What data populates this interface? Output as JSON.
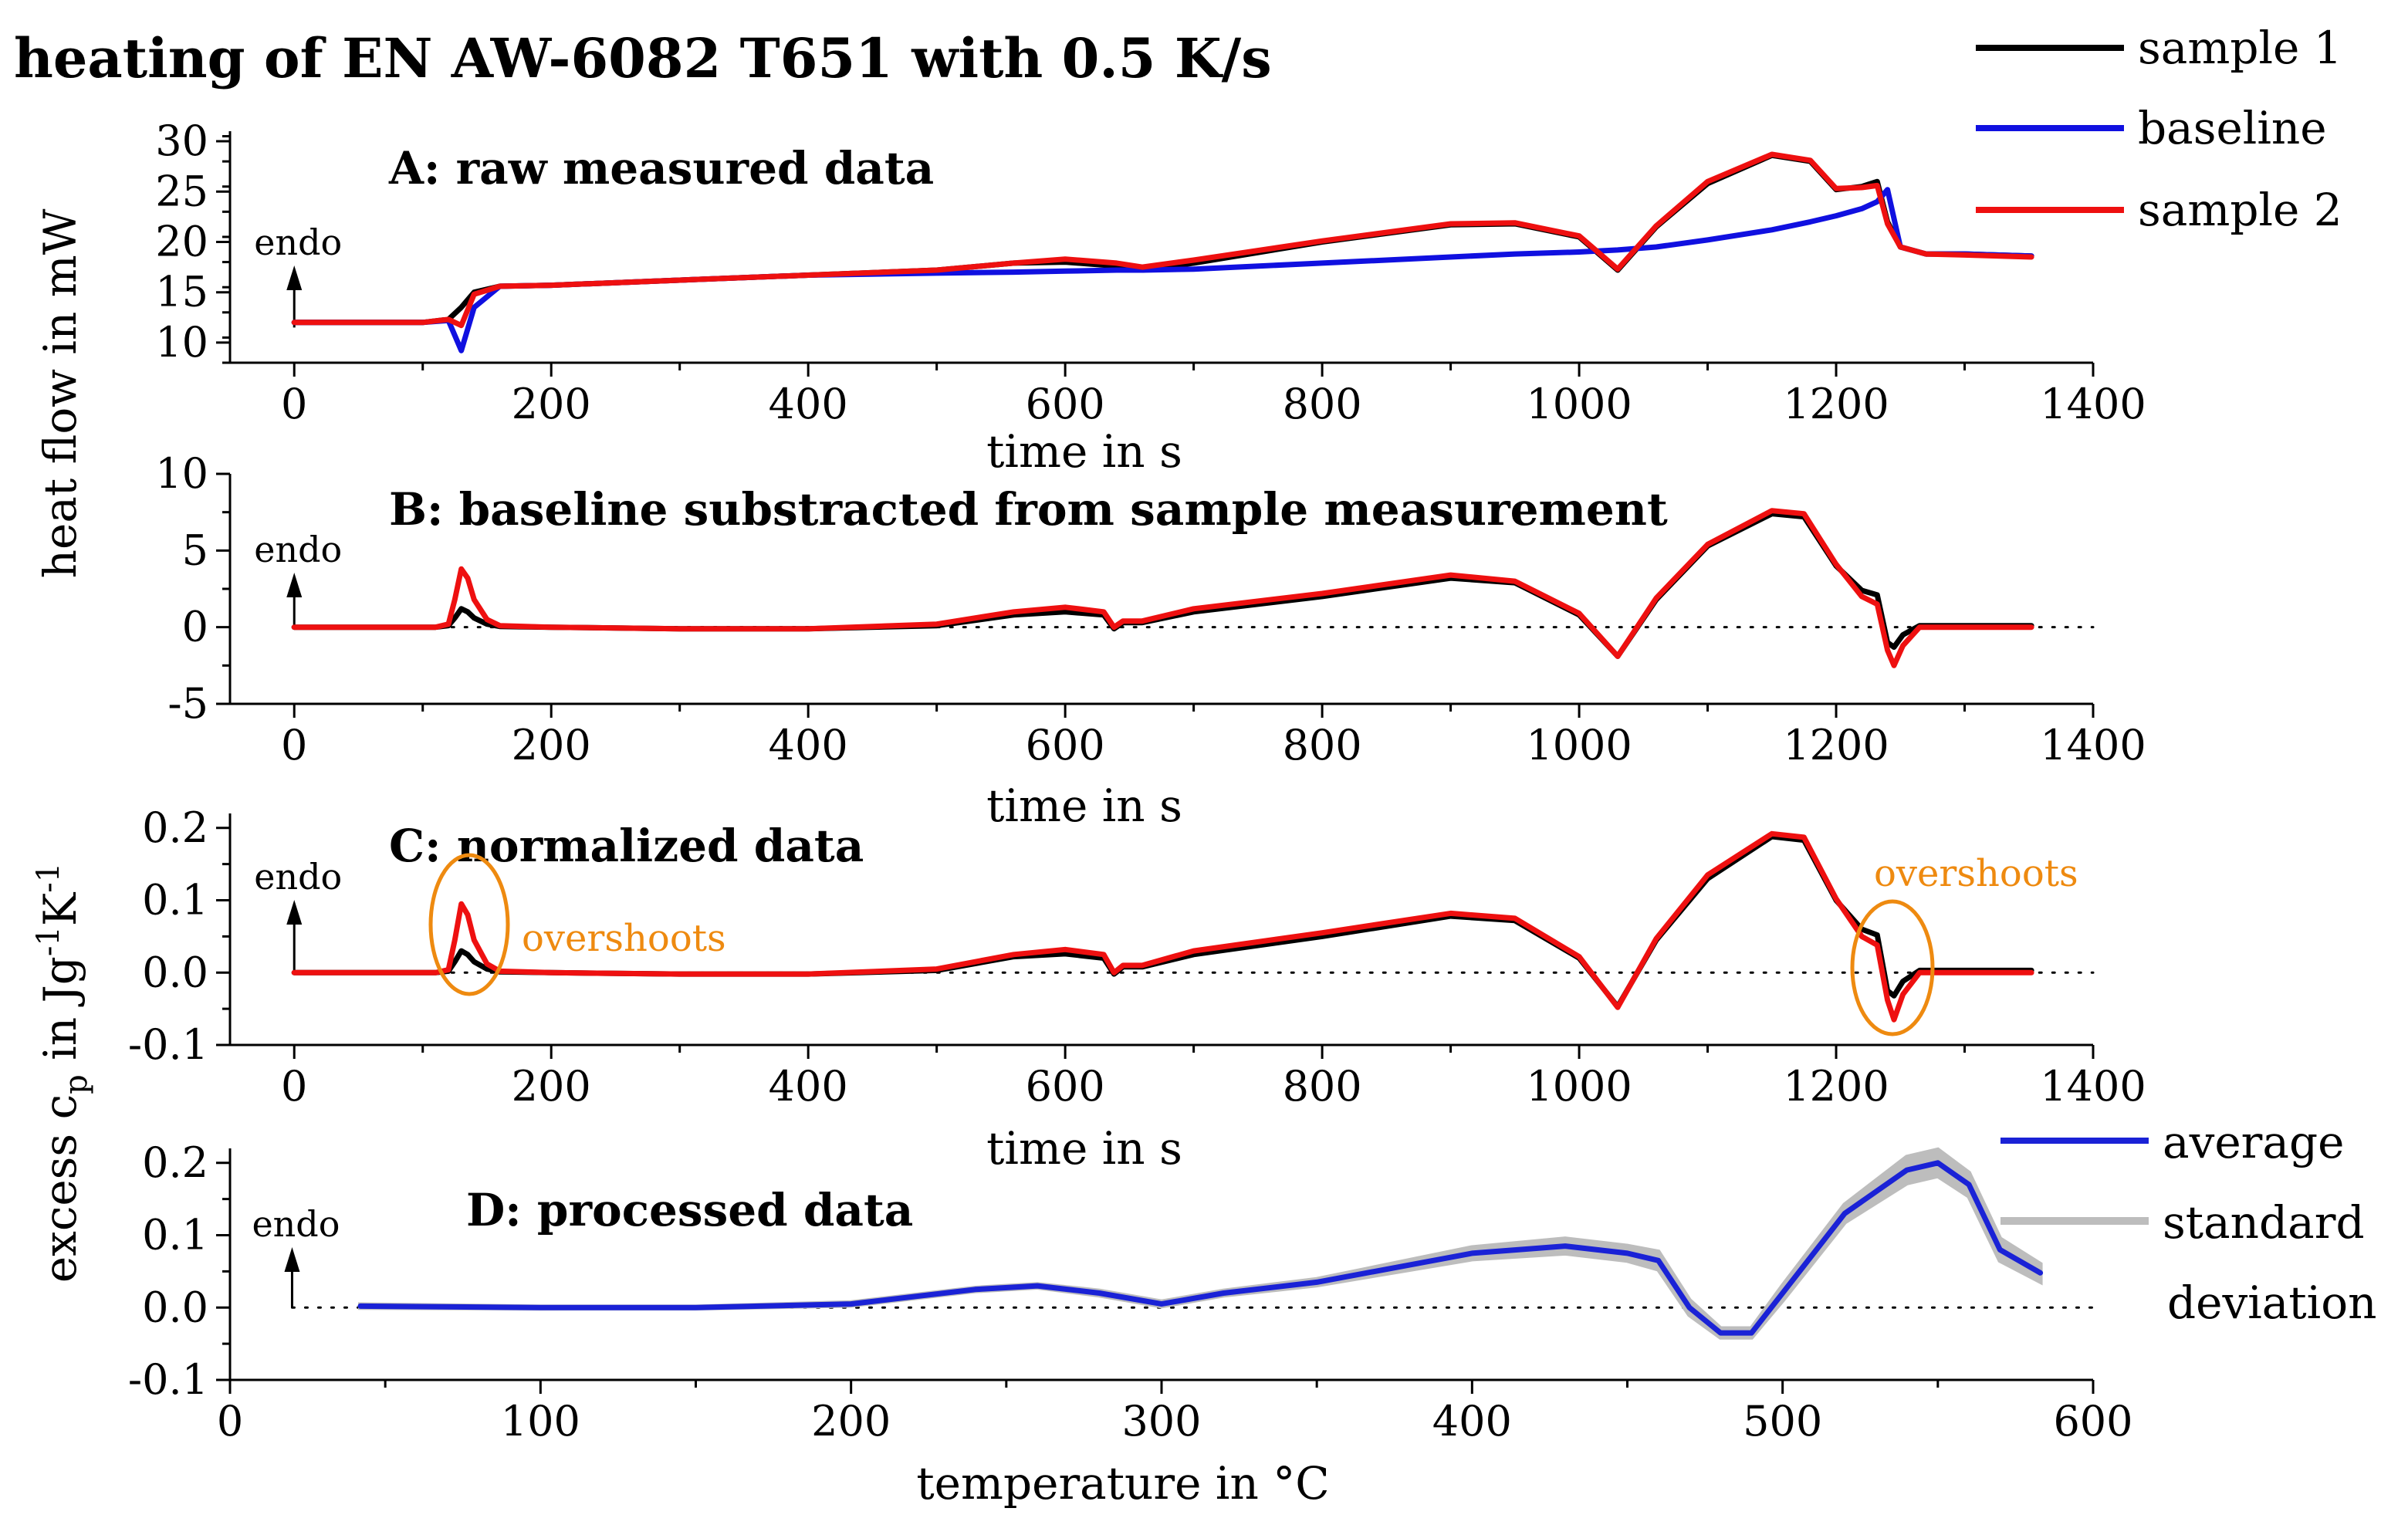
{
  "figure": {
    "title": "heating of EN AW-6082 T651 with 0.5 K/s",
    "shared_ylabel_top": "heat flow in mW",
    "shared_ylabel_bottom_parts": [
      "excess c",
      "p",
      " in Jg",
      "-1",
      "K",
      "-1"
    ],
    "endo_label": "endo",
    "legend_top": [
      {
        "label": "sample 1",
        "color": "#000000"
      },
      {
        "label": "baseline",
        "color": "#1010e0"
      },
      {
        "label": "sample 2",
        "color": "#ee1010"
      }
    ],
    "legend_bottom": [
      {
        "label": "average",
        "color": "#1a22d6"
      },
      {
        "label": "standard",
        "color": "#bdbdbd"
      },
      {
        "label": "deviation",
        "color": "#bdbdbd"
      }
    ],
    "annotations": {
      "overshoots_left": "overshoots",
      "overshoots_right": "overshoots",
      "color": "#ee8a10"
    }
  },
  "chart_data": [
    {
      "id": "A",
      "type": "line",
      "title": "A: raw measured data",
      "xlabel": "time in s",
      "ylabel": "heat flow in mW",
      "xlim": [
        -50,
        1400
      ],
      "ylim": [
        8,
        31
      ],
      "xticks": [
        0,
        200,
        400,
        600,
        800,
        1000,
        1200,
        1400
      ],
      "yticks": [
        10,
        15,
        20,
        25,
        30
      ],
      "x": [
        0,
        100,
        120,
        130,
        140,
        160,
        200,
        300,
        400,
        500,
        560,
        600,
        640,
        660,
        700,
        800,
        900,
        950,
        1000,
        1030,
        1060,
        1100,
        1150,
        1180,
        1200,
        1220,
        1232,
        1240,
        1250,
        1270,
        1300,
        1352
      ],
      "series": [
        {
          "name": "sample 1",
          "color": "#000000",
          "values": [
            12,
            12,
            12.3,
            13.5,
            15,
            15.6,
            15.7,
            16.2,
            16.7,
            17.2,
            17.9,
            18.0,
            17.6,
            17.2,
            17.9,
            20.0,
            21.7,
            21.8,
            20.5,
            17.2,
            21.5,
            25.8,
            28.6,
            28.0,
            25.2,
            25.5,
            26.0,
            22.0,
            19.5,
            18.8,
            18.8,
            18.6
          ]
        },
        {
          "name": "baseline",
          "color": "#1010e0",
          "values": [
            12,
            12,
            12.2,
            9.2,
            13.5,
            15.6,
            15.7,
            16.2,
            16.7,
            16.9,
            17.0,
            17.1,
            17.2,
            17.2,
            17.3,
            17.9,
            18.5,
            18.8,
            19.0,
            19.2,
            19.5,
            20.2,
            21.2,
            22.0,
            22.6,
            23.3,
            24.0,
            25.2,
            19.5,
            18.8,
            18.8,
            18.6
          ]
        },
        {
          "name": "sample 2",
          "color": "#ee1010",
          "values": [
            12,
            12,
            12.3,
            11.7,
            14.8,
            15.6,
            15.7,
            16.2,
            16.7,
            17.2,
            17.9,
            18.3,
            17.9,
            17.5,
            18.2,
            20.1,
            21.8,
            21.9,
            20.6,
            17.3,
            21.6,
            26.0,
            28.7,
            28.1,
            25.3,
            25.4,
            25.6,
            21.8,
            19.5,
            18.8,
            18.7,
            18.5
          ]
        }
      ]
    },
    {
      "id": "B",
      "type": "line",
      "title": "B: baseline substracted from sample measurement",
      "xlabel": "time in s",
      "ylabel": "heat flow in mW",
      "xlim": [
        -50,
        1400
      ],
      "ylim": [
        -5,
        10
      ],
      "xticks": [
        0,
        200,
        400,
        600,
        800,
        1000,
        1200,
        1400
      ],
      "yticks": [
        -5,
        0,
        5,
        10
      ],
      "x": [
        0,
        110,
        120,
        125,
        130,
        135,
        140,
        150,
        160,
        200,
        300,
        400,
        500,
        560,
        600,
        630,
        638,
        645,
        660,
        700,
        800,
        900,
        950,
        1000,
        1030,
        1060,
        1100,
        1150,
        1175,
        1200,
        1220,
        1232,
        1240,
        1245,
        1252,
        1265,
        1300,
        1352
      ],
      "series": [
        {
          "name": "sample 1",
          "color": "#000000",
          "values": [
            0,
            0,
            0.1,
            0.6,
            1.2,
            1.0,
            0.6,
            0.2,
            0.05,
            0,
            -0.1,
            -0.1,
            0.1,
            0.8,
            1.0,
            0.8,
            -0.1,
            0.3,
            0.3,
            1.0,
            2.0,
            3.2,
            2.9,
            0.8,
            -1.9,
            1.8,
            5.3,
            7.4,
            7.2,
            4.0,
            2.4,
            2.1,
            -1.0,
            -1.3,
            -0.5,
            0.1,
            0.1,
            0.1
          ]
        },
        {
          "name": "sample 2",
          "color": "#ee1010",
          "values": [
            0,
            0,
            0.2,
            1.8,
            3.8,
            3.2,
            1.8,
            0.5,
            0.1,
            0,
            -0.1,
            -0.1,
            0.2,
            1.0,
            1.3,
            1.0,
            0.0,
            0.4,
            0.4,
            1.2,
            2.2,
            3.4,
            3.0,
            0.9,
            -1.9,
            1.9,
            5.4,
            7.6,
            7.4,
            4.1,
            2.0,
            1.5,
            -1.5,
            -2.5,
            -1.2,
            0.0,
            0.0,
            0.0
          ]
        }
      ]
    },
    {
      "id": "C",
      "type": "line",
      "title": "C: normalized data",
      "xlabel": "time in s",
      "ylabel": "excess cp in Jg-1K-1",
      "xlim": [
        -50,
        1400
      ],
      "ylim": [
        -0.1,
        0.22
      ],
      "xticks": [
        0,
        200,
        400,
        600,
        800,
        1000,
        1200,
        1400
      ],
      "yticks": [
        -0.1,
        0.0,
        0.1,
        0.2
      ],
      "yticklabels": [
        "-0.1",
        "0.0",
        "0.1",
        "0.2"
      ],
      "x": [
        0,
        110,
        120,
        125,
        130,
        135,
        140,
        150,
        160,
        200,
        300,
        400,
        500,
        560,
        600,
        630,
        638,
        645,
        660,
        700,
        800,
        900,
        950,
        1000,
        1030,
        1060,
        1100,
        1150,
        1175,
        1200,
        1220,
        1232,
        1240,
        1245,
        1252,
        1265,
        1300,
        1352
      ],
      "series": [
        {
          "name": "sample 1",
          "color": "#000000",
          "values": [
            0,
            0,
            0.002,
            0.015,
            0.03,
            0.025,
            0.015,
            0.005,
            0.001,
            0,
            -0.002,
            -0.002,
            0.003,
            0.022,
            0.026,
            0.02,
            -0.002,
            0.008,
            0.008,
            0.025,
            0.05,
            0.078,
            0.072,
            0.02,
            -0.047,
            0.045,
            0.13,
            0.188,
            0.183,
            0.1,
            0.06,
            0.052,
            -0.025,
            -0.032,
            -0.012,
            0.003,
            0.003,
            0.003
          ]
        },
        {
          "name": "sample 2",
          "color": "#ee1010",
          "values": [
            0,
            0,
            0.004,
            0.045,
            0.095,
            0.08,
            0.045,
            0.012,
            0.002,
            0,
            -0.002,
            -0.002,
            0.005,
            0.025,
            0.032,
            0.025,
            0.0,
            0.01,
            0.01,
            0.03,
            0.055,
            0.082,
            0.075,
            0.022,
            -0.048,
            0.047,
            0.135,
            0.192,
            0.187,
            0.102,
            0.05,
            0.038,
            -0.038,
            -0.065,
            -0.03,
            0.0,
            0.0,
            0.0
          ]
        }
      ]
    },
    {
      "id": "D",
      "type": "line",
      "title": "D: processed data",
      "xlabel": "temperature in °C",
      "ylabel": "excess cp in Jg-1K-1",
      "xlim": [
        0,
        600
      ],
      "ylim": [
        -0.1,
        0.22
      ],
      "xticks": [
        0,
        100,
        200,
        300,
        400,
        500,
        600
      ],
      "yticks": [
        -0.1,
        0.0,
        0.1,
        0.2
      ],
      "yticklabels": [
        "-0.1",
        "0.0",
        "0.1",
        "0.2"
      ],
      "x": [
        42,
        100,
        150,
        200,
        240,
        260,
        280,
        300,
        320,
        350,
        400,
        430,
        450,
        460,
        470,
        480,
        490,
        500,
        520,
        540,
        550,
        560,
        570,
        583
      ],
      "series": [
        {
          "name": "average",
          "color": "#1a22d6",
          "values": [
            0.002,
            0,
            0,
            0.005,
            0.025,
            0.03,
            0.02,
            0.005,
            0.02,
            0.035,
            0.075,
            0.085,
            0.075,
            0.065,
            0.0,
            -0.035,
            -0.035,
            0.02,
            0.13,
            0.19,
            0.2,
            0.17,
            0.08,
            0.048
          ]
        },
        {
          "name": "standard deviation",
          "color": "#bdbdbd",
          "band": true,
          "values": [
            0.002,
            0.001,
            0.001,
            0.002,
            0.002,
            0.002,
            0.003,
            0.003,
            0.003,
            0.004,
            0.008,
            0.01,
            0.01,
            0.012,
            0.01,
            0.006,
            0.006,
            0.01,
            0.012,
            0.018,
            0.018,
            0.016,
            0.015,
            0.012
          ]
        }
      ]
    }
  ]
}
